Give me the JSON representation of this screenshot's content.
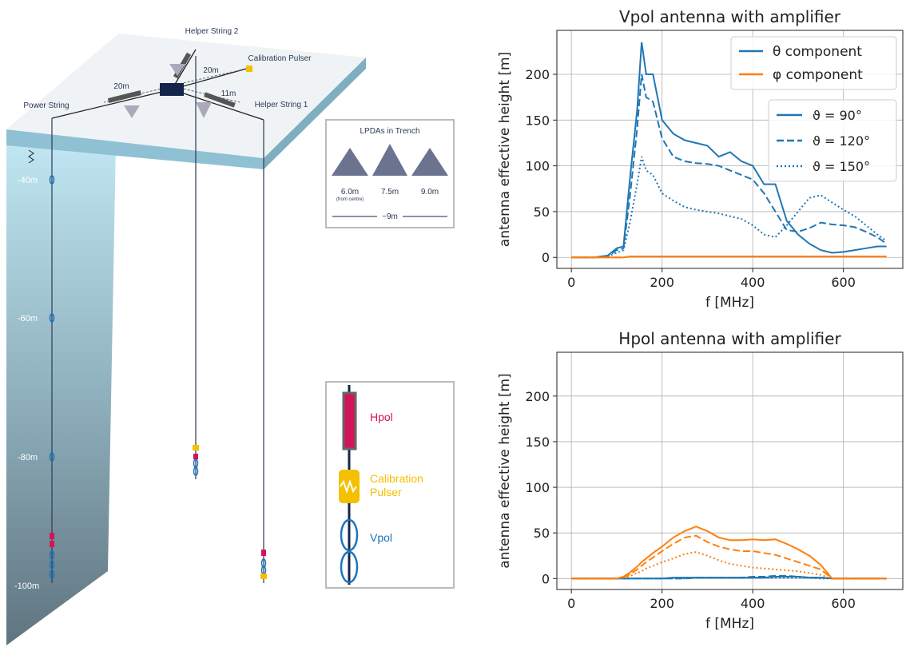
{
  "diagram": {
    "strings": {
      "helper_2": "Helper String 2",
      "calibration_pulser": "Calibration Pulser",
      "power": "Power String",
      "helper_1": "Helper String 1"
    },
    "distances": [
      "20m",
      "20m",
      "11m"
    ],
    "depths": [
      "-40m",
      "-60m",
      "-80m",
      "-100m"
    ],
    "lpda_box": {
      "title": "LPDAs in Trench",
      "spacings": [
        "6.0m",
        "7.5m",
        "9.0m"
      ],
      "note": "(from centre)",
      "width": "~9m"
    },
    "antenna_legend": {
      "hpol": "Hpol",
      "calibration_pulser": [
        "Calibration",
        "Pulser"
      ],
      "vpol": "Vpol"
    }
  },
  "chart_data": [
    {
      "type": "line",
      "title": "Vpol antenna with amplifier",
      "xlabel": "f [MHz]",
      "ylabel": "antenna effective height [m]",
      "x": [
        0,
        50,
        80,
        100,
        115,
        130,
        145,
        155,
        165,
        180,
        200,
        225,
        250,
        275,
        300,
        325,
        350,
        375,
        400,
        425,
        450,
        475,
        500,
        525,
        550,
        575,
        600,
        625,
        650,
        675,
        695
      ],
      "xlim": [
        -32,
        731
      ],
      "ylim": [
        -12,
        248
      ],
      "xticks": [
        0,
        200,
        400,
        600
      ],
      "yticks": [
        0,
        50,
        100,
        150,
        200
      ],
      "grid": true,
      "series": [
        {
          "color": "#1f77b4",
          "dash": "solid",
          "values": [
            0,
            0,
            2,
            10,
            12,
            90,
            160,
            235,
            200,
            200,
            150,
            135,
            128,
            125,
            122,
            110,
            115,
            105,
            100,
            80,
            80,
            40,
            25,
            15,
            8,
            5,
            6,
            8,
            10,
            12,
            12
          ]
        },
        {
          "color": "#1f77b4",
          "dash": "dashed",
          "values": [
            0,
            0,
            1,
            8,
            10,
            70,
            140,
            200,
            175,
            170,
            130,
            110,
            105,
            103,
            102,
            100,
            95,
            90,
            85,
            70,
            50,
            30,
            28,
            32,
            38,
            36,
            35,
            33,
            28,
            22,
            15
          ]
        },
        {
          "color": "#1f77b4",
          "dash": "dotted",
          "values": [
            0,
            0,
            1,
            5,
            8,
            40,
            80,
            110,
            95,
            90,
            70,
            62,
            55,
            52,
            50,
            48,
            45,
            42,
            35,
            25,
            22,
            35,
            50,
            65,
            68,
            60,
            52,
            45,
            35,
            25,
            18
          ]
        },
        {
          "color": "#ff7f0e",
          "dash": "solid",
          "values": [
            0,
            0,
            0,
            0,
            0,
            1,
            1,
            1,
            1,
            1,
            1,
            1,
            1,
            1,
            1,
            1,
            1,
            1,
            1,
            1,
            1,
            1,
            1,
            1,
            1,
            1,
            1,
            1,
            1,
            1,
            1
          ]
        },
        {
          "color": "#ff7f0e",
          "dash": "dashed",
          "values": [
            0,
            0,
            0,
            0,
            0,
            1,
            1,
            1,
            1,
            1,
            1,
            1,
            1,
            1,
            1,
            1,
            1,
            1,
            1,
            1,
            1,
            1,
            1,
            1,
            1,
            1,
            1,
            1,
            1,
            1,
            1
          ]
        },
        {
          "color": "#ff7f0e",
          "dash": "dotted",
          "values": [
            0,
            0,
            0,
            0,
            0,
            1,
            1,
            1,
            1,
            1,
            1,
            1,
            1,
            1,
            1,
            1,
            1,
            1,
            1,
            1,
            1,
            1,
            1,
            1,
            1,
            1,
            1,
            1,
            1,
            1,
            1
          ]
        }
      ],
      "legend_colors": [
        {
          "label": "θ component",
          "color": "#1f77b4"
        },
        {
          "label": "φ component",
          "color": "#ff7f0e"
        }
      ],
      "legend_styles": [
        {
          "label": "ϑ = 90°",
          "dash": "solid"
        },
        {
          "label": "ϑ = 120°",
          "dash": "dashed"
        },
        {
          "label": "ϑ = 150°",
          "dash": "dotted"
        }
      ]
    },
    {
      "type": "line",
      "title": "Hpol antenna with amplifier",
      "xlabel": "f [MHz]",
      "ylabel": "antenna effective height [m]",
      "x": [
        0,
        50,
        80,
        100,
        115,
        130,
        145,
        155,
        165,
        180,
        200,
        225,
        250,
        275,
        300,
        325,
        350,
        375,
        400,
        425,
        450,
        475,
        500,
        525,
        550,
        575,
        600,
        625,
        650,
        675,
        695
      ],
      "xlim": [
        -32,
        731
      ],
      "ylim": [
        -12,
        248
      ],
      "xticks": [
        0,
        200,
        400,
        600
      ],
      "yticks": [
        0,
        50,
        100,
        150,
        200
      ],
      "grid": true,
      "series": [
        {
          "color": "#1f77b4",
          "dash": "solid",
          "values": [
            0,
            0,
            0,
            0,
            0,
            0,
            0,
            0,
            0,
            0,
            0,
            1,
            1,
            1,
            1,
            1,
            1,
            1,
            1,
            1,
            2,
            2,
            2,
            1,
            1,
            0,
            0,
            0,
            0,
            0,
            0
          ]
        },
        {
          "color": "#1f77b4",
          "dash": "dashed",
          "values": [
            0,
            0,
            0,
            0,
            0,
            0,
            0,
            0,
            0,
            0,
            0,
            0,
            0,
            1,
            1,
            1,
            1,
            1,
            2,
            2,
            3,
            3,
            2,
            1,
            1,
            0,
            0,
            0,
            0,
            0,
            0
          ]
        },
        {
          "color": "#1f77b4",
          "dash": "dotted",
          "values": [
            0,
            0,
            0,
            0,
            0,
            0,
            0,
            0,
            0,
            0,
            0,
            0,
            0,
            1,
            1,
            1,
            1,
            1,
            1,
            1,
            1,
            1,
            1,
            1,
            0,
            0,
            0,
            0,
            0,
            0,
            0
          ]
        },
        {
          "color": "#ff7f0e",
          "dash": "solid",
          "values": [
            0,
            0,
            0,
            0,
            2,
            7,
            13,
            18,
            22,
            28,
            35,
            45,
            52,
            57,
            52,
            45,
            42,
            42,
            43,
            42,
            43,
            38,
            32,
            25,
            15,
            0,
            0,
            0,
            0,
            0,
            0
          ]
        },
        {
          "color": "#ff7f0e",
          "dash": "dashed",
          "values": [
            0,
            0,
            0,
            0,
            1,
            5,
            10,
            14,
            18,
            23,
            30,
            38,
            45,
            47,
            40,
            35,
            32,
            30,
            30,
            28,
            26,
            22,
            18,
            14,
            10,
            0,
            0,
            0,
            0,
            0,
            0
          ]
        },
        {
          "color": "#ff7f0e",
          "dash": "dotted",
          "values": [
            0,
            0,
            0,
            0,
            1,
            3,
            6,
            8,
            11,
            14,
            18,
            22,
            27,
            29,
            25,
            20,
            16,
            14,
            12,
            11,
            10,
            9,
            8,
            6,
            4,
            0,
            0,
            0,
            0,
            0,
            0
          ]
        }
      ]
    }
  ]
}
